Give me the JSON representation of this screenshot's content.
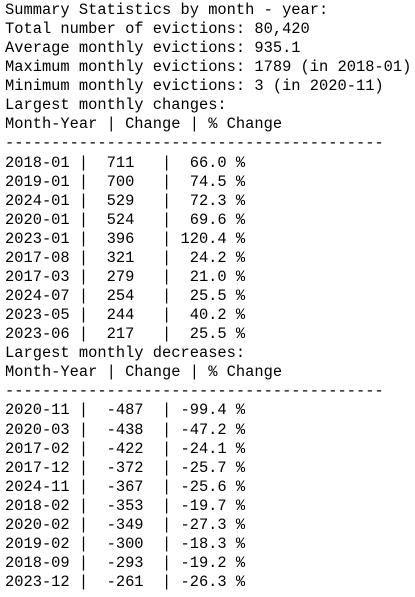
{
  "summary": {
    "title": "Summary Statistics by month - year:",
    "lines": [
      "Total number of evictions: 80,420",
      "Average monthly evictions: 935.1",
      "Maximum monthly evictions: 1789 (in 2018-01)",
      "Minimum monthly evictions: 3 (in 2020-11)"
    ]
  },
  "column_separator": "|",
  "sections": [
    {
      "title": "Largest monthly changes:",
      "header": "Month-Year | Change | % Change",
      "separator": "-----------------------------------------",
      "rows": [
        [
          "2018-01",
          "711",
          "66.0 %"
        ],
        [
          "2019-01",
          "700",
          "74.5 %"
        ],
        [
          "2024-01",
          "529",
          "72.3 %"
        ],
        [
          "2020-01",
          "524",
          "69.6 %"
        ],
        [
          "2023-01",
          "396",
          "120.4 %"
        ],
        [
          "2017-08",
          "321",
          "24.2 %"
        ],
        [
          "2017-03",
          "279",
          "21.0 %"
        ],
        [
          "2024-07",
          "254",
          "25.5 %"
        ],
        [
          "2023-05",
          "244",
          "40.2 %"
        ],
        [
          "2023-06",
          "217",
          "25.5 %"
        ]
      ]
    },
    {
      "title": "Largest monthly decreases:",
      "header": "Month-Year | Change | % Change",
      "separator": "-----------------------------------------",
      "rows": [
        [
          "2020-11",
          "-487",
          "-99.4 %"
        ],
        [
          "2020-03",
          "-438",
          "-47.2 %"
        ],
        [
          "2017-02",
          "-422",
          "-24.1 %"
        ],
        [
          "2017-12",
          "-372",
          "-25.7 %"
        ],
        [
          "2024-11",
          "-367",
          "-25.6 %"
        ],
        [
          "2018-02",
          "-353",
          "-19.7 %"
        ],
        [
          "2020-02",
          "-349",
          "-27.3 %"
        ],
        [
          "2019-02",
          "-300",
          "-18.3 %"
        ],
        [
          "2018-09",
          "-293",
          "-19.2 %"
        ],
        [
          "2023-12",
          "-261",
          "-26.3 %"
        ]
      ]
    }
  ]
}
